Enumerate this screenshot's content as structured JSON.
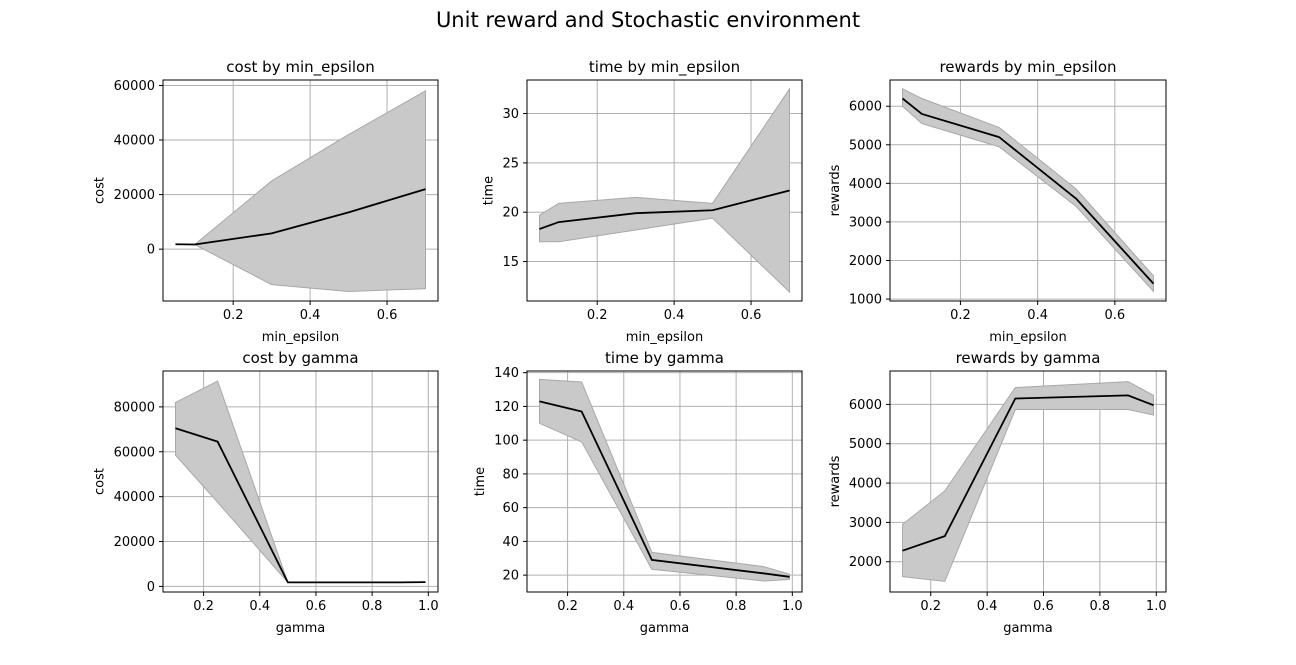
{
  "figure": {
    "title": "Unit reward and Stochastic environment"
  },
  "chart_data": [
    {
      "type": "line",
      "title": "cost by min_epsilon",
      "xlabel": "min_epsilon",
      "ylabel": "cost",
      "x": [
        0.05,
        0.1,
        0.3,
        0.5,
        0.7
      ],
      "series": [
        {
          "values": [
            1800,
            1700,
            5800,
            13500,
            22000
          ]
        }
      ],
      "band_low": [
        1800,
        1700,
        -13000,
        -15500,
        -14500
      ],
      "band_high": [
        1800,
        1700,
        25000,
        42000,
        58000
      ],
      "xlim": [
        0.0175,
        0.7325
      ],
      "ylim": [
        -19000,
        62000
      ],
      "xticks": [
        0.2,
        0.4,
        0.6
      ],
      "xticklabels": [
        "0.2",
        "0.4",
        "0.6"
      ],
      "yticks": [
        0,
        20000,
        40000,
        60000
      ],
      "yticklabels": [
        "0",
        "20000",
        "40000",
        "60000"
      ],
      "grid": true
    },
    {
      "type": "line",
      "title": "time by min_epsilon",
      "xlabel": "min_epsilon",
      "ylabel": "time",
      "x": [
        0.05,
        0.1,
        0.3,
        0.5,
        0.7
      ],
      "series": [
        {
          "values": [
            18.3,
            19.0,
            19.9,
            20.2,
            22.2
          ]
        }
      ],
      "band_low": [
        17.0,
        17.0,
        18.2,
        19.4,
        11.9
      ],
      "band_high": [
        19.7,
        20.9,
        21.5,
        20.9,
        32.5
      ],
      "xlim": [
        0.0175,
        0.7325
      ],
      "ylim": [
        11.0,
        33.4
      ],
      "xticks": [
        0.2,
        0.4,
        0.6
      ],
      "xticklabels": [
        "0.2",
        "0.4",
        "0.6"
      ],
      "yticks": [
        15,
        20,
        25,
        30
      ],
      "yticklabels": [
        "15",
        "20",
        "25",
        "30"
      ],
      "grid": true
    },
    {
      "type": "line",
      "title": "rewards by min_epsilon",
      "xlabel": "min_epsilon",
      "ylabel": "rewards",
      "x": [
        0.05,
        0.1,
        0.3,
        0.5,
        0.7
      ],
      "series": [
        {
          "values": [
            6200,
            5800,
            5200,
            3600,
            1400
          ]
        }
      ],
      "band_low": [
        6000,
        5550,
        4950,
        3400,
        1200
      ],
      "band_high": [
        6450,
        6200,
        5450,
        3850,
        1600
      ],
      "xlim": [
        0.0175,
        0.7325
      ],
      "ylim": [
        950,
        6680
      ],
      "xticks": [
        0.2,
        0.4,
        0.6
      ],
      "xticklabels": [
        "0.2",
        "0.4",
        "0.6"
      ],
      "yticks": [
        1000,
        2000,
        3000,
        4000,
        5000,
        6000
      ],
      "yticklabels": [
        "1000",
        "2000",
        "3000",
        "4000",
        "5000",
        "6000"
      ],
      "grid": true
    },
    {
      "type": "line",
      "title": "cost by gamma",
      "xlabel": "gamma",
      "ylabel": "cost",
      "x": [
        0.1,
        0.25,
        0.5,
        0.9,
        0.99
      ],
      "series": [
        {
          "values": [
            70500,
            64500,
            1800,
            1800,
            1900
          ]
        }
      ],
      "band_low": [
        58500,
        37500,
        1800,
        1800,
        1900
      ],
      "band_high": [
        82000,
        91500,
        1800,
        1800,
        1900
      ],
      "xlim": [
        0.0555,
        1.0345
      ],
      "ylim": [
        -2500,
        96000
      ],
      "xticks": [
        0.2,
        0.4,
        0.6,
        0.8,
        1.0
      ],
      "xticklabels": [
        "0.2",
        "0.4",
        "0.6",
        "0.8",
        "1.0"
      ],
      "yticks": [
        0,
        20000,
        40000,
        60000,
        80000
      ],
      "yticklabels": [
        "0",
        "20000",
        "40000",
        "60000",
        "80000"
      ],
      "grid": true
    },
    {
      "type": "line",
      "title": "time by gamma",
      "xlabel": "gamma",
      "ylabel": "time",
      "x": [
        0.1,
        0.25,
        0.5,
        0.9,
        0.99
      ],
      "series": [
        {
          "values": [
            123,
            117,
            29,
            21,
            19
          ]
        }
      ],
      "band_low": [
        110,
        99,
        23.5,
        16.5,
        17.5
      ],
      "band_high": [
        136,
        134.5,
        33.5,
        25,
        20.5
      ],
      "xlim": [
        0.0555,
        1.0345
      ],
      "ylim": [
        10,
        141
      ],
      "xticks": [
        0.2,
        0.4,
        0.6,
        0.8,
        1.0
      ],
      "xticklabels": [
        "0.2",
        "0.4",
        "0.6",
        "0.8",
        "1.0"
      ],
      "yticks": [
        20,
        40,
        60,
        80,
        100,
        120,
        140
      ],
      "yticklabels": [
        "20",
        "40",
        "60",
        "80",
        "100",
        "120",
        "140"
      ],
      "grid": true
    },
    {
      "type": "line",
      "title": "rewards by gamma",
      "xlabel": "gamma",
      "ylabel": "rewards",
      "x": [
        0.1,
        0.25,
        0.5,
        0.9,
        0.99
      ],
      "series": [
        {
          "values": [
            2280,
            2650,
            6150,
            6230,
            5980
          ]
        }
      ],
      "band_low": [
        1620,
        1500,
        5870,
        5870,
        5730
      ],
      "band_high": [
        2950,
        3800,
        6430,
        6580,
        6230
      ],
      "xlim": [
        0.0555,
        1.0345
      ],
      "ylim": [
        1230,
        6850
      ],
      "xticks": [
        0.2,
        0.4,
        0.6,
        0.8,
        1.0
      ],
      "xticklabels": [
        "0.2",
        "0.4",
        "0.6",
        "0.8",
        "1.0"
      ],
      "yticks": [
        2000,
        3000,
        4000,
        5000,
        6000
      ],
      "yticklabels": [
        "2000",
        "3000",
        "4000",
        "5000",
        "6000"
      ],
      "grid": true
    }
  ],
  "colors": {
    "line": "#000000",
    "band_fill": "#c9c9c9",
    "band_edge": "#a8a8a8",
    "grid": "#b0b0b0",
    "axes": "#000000"
  }
}
